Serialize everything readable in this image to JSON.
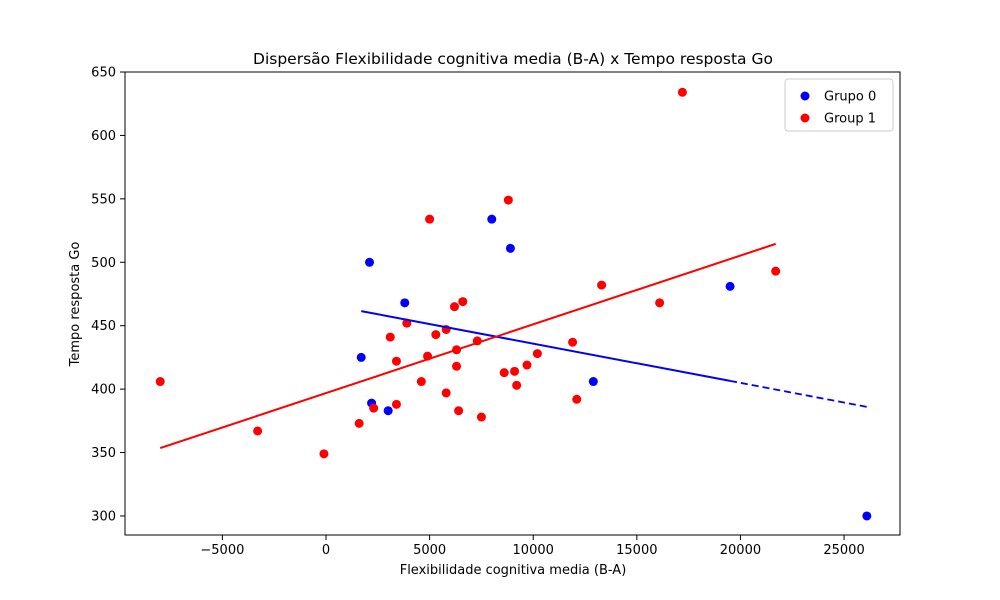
{
  "chart_data": {
    "type": "scatter",
    "title": "Dispersão Flexibilidade cognitiva media (B-A) x Tempo resposta Go",
    "xlabel": "Flexibilidade cognitiva media (B-A)",
    "ylabel": "Tempo resposta Go",
    "xlim": [
      -9700,
      27700
    ],
    "ylim": [
      285,
      650
    ],
    "xticks": [
      -5000,
      0,
      5000,
      10000,
      15000,
      20000,
      25000
    ],
    "xtick_labels": [
      "−5000",
      "0",
      "5000",
      "10000",
      "15000",
      "20000",
      "25000"
    ],
    "yticks": [
      300,
      350,
      400,
      450,
      500,
      550,
      600,
      650
    ],
    "ytick_labels": [
      "300",
      "350",
      "400",
      "450",
      "500",
      "550",
      "600",
      "650"
    ],
    "grid": false,
    "legend_position": "top-right",
    "series": [
      {
        "name": "Grupo 0",
        "color": "#0000ff",
        "points": [
          [
            1700,
            425
          ],
          [
            2100,
            500
          ],
          [
            2200,
            389
          ],
          [
            3000,
            383
          ],
          [
            3800,
            468
          ],
          [
            8000,
            534
          ],
          [
            8900,
            511
          ],
          [
            12900,
            406
          ],
          [
            19500,
            481
          ],
          [
            26100,
            300
          ]
        ]
      },
      {
        "name": "Group 1",
        "color": "#ff0000",
        "points": [
          [
            -8000,
            406
          ],
          [
            -3300,
            367
          ],
          [
            -100,
            349
          ],
          [
            1600,
            373
          ],
          [
            2300,
            385
          ],
          [
            3100,
            441
          ],
          [
            3400,
            422
          ],
          [
            3400,
            388
          ],
          [
            3900,
            452
          ],
          [
            4600,
            406
          ],
          [
            4900,
            426
          ],
          [
            5000,
            534
          ],
          [
            5300,
            443
          ],
          [
            5800,
            447
          ],
          [
            5800,
            397
          ],
          [
            6200,
            465
          ],
          [
            6300,
            431
          ],
          [
            6300,
            418
          ],
          [
            6400,
            383
          ],
          [
            6600,
            469
          ],
          [
            7300,
            438
          ],
          [
            7500,
            378
          ],
          [
            8600,
            413
          ],
          [
            8800,
            549
          ],
          [
            9100,
            414
          ],
          [
            9200,
            403
          ],
          [
            9700,
            419
          ],
          [
            10200,
            428
          ],
          [
            11900,
            437
          ],
          [
            12100,
            392
          ],
          [
            13300,
            482
          ],
          [
            16100,
            468
          ],
          [
            17200,
            634
          ],
          [
            21700,
            493
          ]
        ]
      }
    ],
    "trendlines": [
      {
        "series": "Grupo 0",
        "color": "#0000ff",
        "x0": 1700,
        "y0": 461.5,
        "x1": 19500,
        "y1": 406.5,
        "dashed_extension_to_x": 26100,
        "dashed_extension_y": 386
      },
      {
        "series": "Group 1",
        "color": "#ff0000",
        "x0": -8000,
        "y0": 353.5,
        "x1": 21700,
        "y1": 514.5
      }
    ]
  }
}
